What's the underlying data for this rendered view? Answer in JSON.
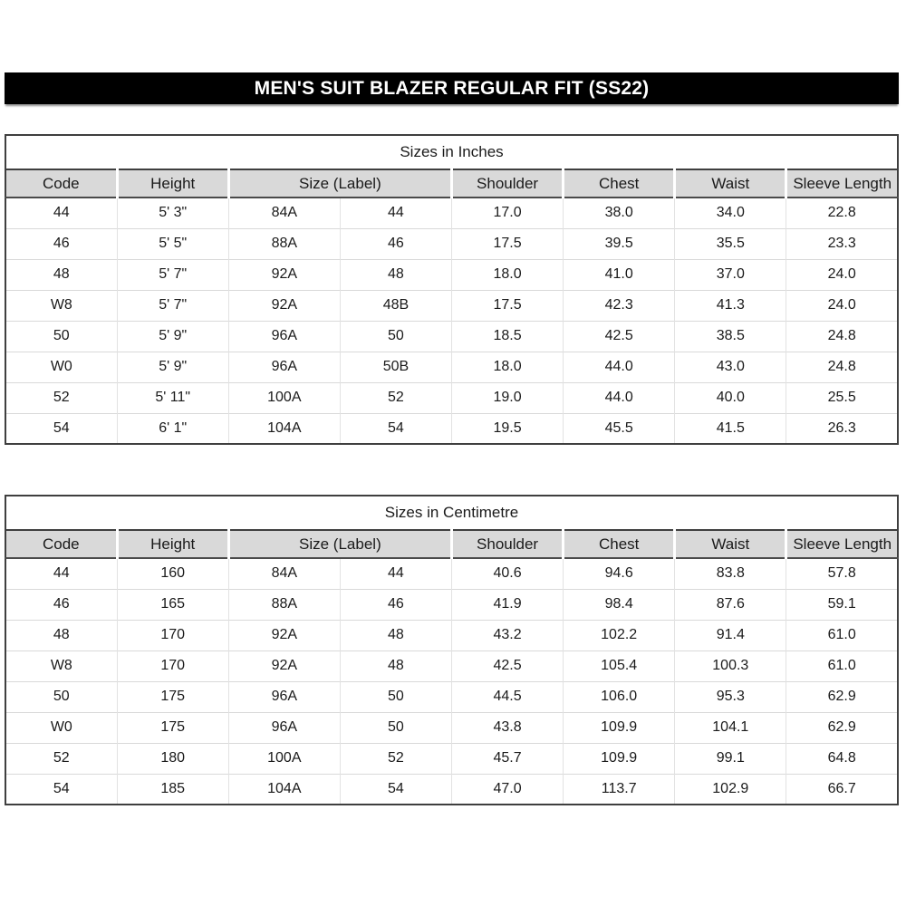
{
  "title_bar": {
    "text": "MEN'S SUIT BLAZER REGULAR FIT (SS22)",
    "bg_color": "#000000",
    "text_color": "#ffffff"
  },
  "columns": [
    {
      "label": "Code",
      "span": 1
    },
    {
      "label": "Height",
      "span": 1
    },
    {
      "label": "Size (Label)",
      "span": 2
    },
    {
      "label": "Shoulder",
      "span": 1
    },
    {
      "label": "Chest",
      "span": 1
    },
    {
      "label": "Waist",
      "span": 1
    },
    {
      "label": "Sleeve Length",
      "span": 1
    }
  ],
  "tables": [
    {
      "caption": "Sizes in Inches",
      "rows": [
        [
          "44",
          "5' 3\"",
          "84A",
          "44",
          "17.0",
          "38.0",
          "34.0",
          "22.8"
        ],
        [
          "46",
          "5' 5\"",
          "88A",
          "46",
          "17.5",
          "39.5",
          "35.5",
          "23.3"
        ],
        [
          "48",
          "5' 7\"",
          "92A",
          "48",
          "18.0",
          "41.0",
          "37.0",
          "24.0"
        ],
        [
          "W8",
          "5' 7\"",
          "92A",
          "48B",
          "17.5",
          "42.3",
          "41.3",
          "24.0"
        ],
        [
          "50",
          "5' 9\"",
          "96A",
          "50",
          "18.5",
          "42.5",
          "38.5",
          "24.8"
        ],
        [
          "W0",
          "5' 9\"",
          "96A",
          "50B",
          "18.0",
          "44.0",
          "43.0",
          "24.8"
        ],
        [
          "52",
          "5' 11\"",
          "100A",
          "52",
          "19.0",
          "44.0",
          "40.0",
          "25.5"
        ],
        [
          "54",
          "6' 1\"",
          "104A",
          "54",
          "19.5",
          "45.5",
          "41.5",
          "26.3"
        ]
      ]
    },
    {
      "caption": "Sizes in Centimetre",
      "rows": [
        [
          "44",
          "160",
          "84A",
          "44",
          "40.6",
          "94.6",
          "83.8",
          "57.8"
        ],
        [
          "46",
          "165",
          "88A",
          "46",
          "41.9",
          "98.4",
          "87.6",
          "59.1"
        ],
        [
          "48",
          "170",
          "92A",
          "48",
          "43.2",
          "102.2",
          "91.4",
          "61.0"
        ],
        [
          "W8",
          "170",
          "92A",
          "48",
          "42.5",
          "105.4",
          "100.3",
          "61.0"
        ],
        [
          "50",
          "175",
          "96A",
          "50",
          "44.5",
          "106.0",
          "95.3",
          "62.9"
        ],
        [
          "W0",
          "175",
          "96A",
          "50",
          "43.8",
          "109.9",
          "104.1",
          "62.9"
        ],
        [
          "52",
          "180",
          "100A",
          "52",
          "45.7",
          "109.9",
          "99.1",
          "64.8"
        ],
        [
          "54",
          "185",
          "104A",
          "54",
          "47.0",
          "113.7",
          "102.9",
          "66.7"
        ]
      ]
    }
  ],
  "colors": {
    "header_bg": "#d9d9d9",
    "grid_line": "#d9d9d9",
    "outer_border": "#3f3f3f",
    "banner_bg": "#000000",
    "banner_text": "#ffffff"
  }
}
